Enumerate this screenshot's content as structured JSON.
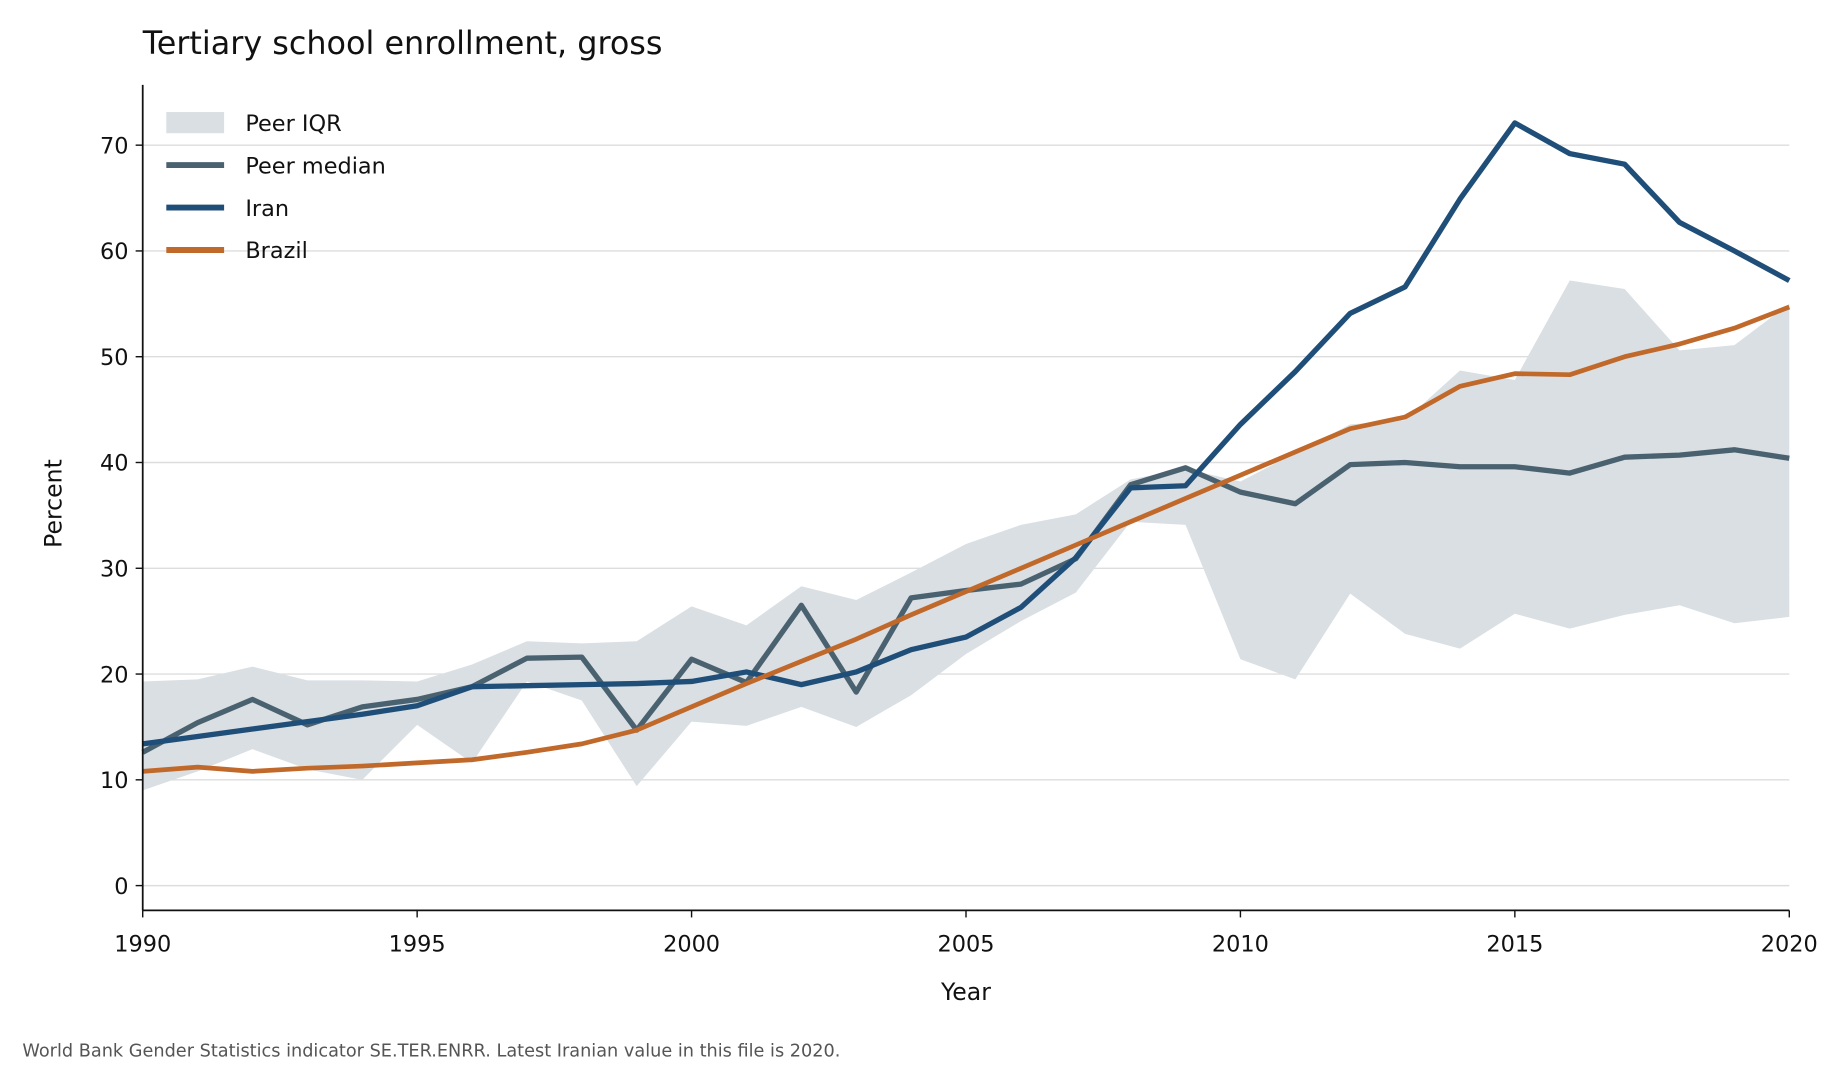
{
  "chart_data": {
    "type": "line",
    "title": "Tertiary school enrollment, gross",
    "xlabel": "Year",
    "ylabel": "Percent",
    "xlim": [
      1990,
      2020
    ],
    "ylim": [
      -2.5,
      75.5
    ],
    "xticks": [
      1990,
      1995,
      2000,
      2005,
      2010,
      2015,
      2020
    ],
    "yticks": [
      0,
      10,
      20,
      30,
      40,
      50,
      60,
      70
    ],
    "grid": "horizontal",
    "legend_position": "top-left",
    "x": [
      1990,
      1991,
      1992,
      1993,
      1994,
      1995,
      1996,
      1997,
      1998,
      1999,
      2000,
      2001,
      2002,
      2003,
      2004,
      2005,
      2006,
      2007,
      2008,
      2009,
      2010,
      2011,
      2012,
      2013,
      2014,
      2015,
      2016,
      2017,
      2018,
      2019,
      2020
    ],
    "band": {
      "name": "Peer IQR",
      "color": "#dadfe3",
      "upper": [
        19.3,
        19.5,
        20.7,
        19.4,
        19.4,
        19.3,
        20.9,
        23.1,
        22.9,
        23.1,
        26.4,
        24.6,
        28.3,
        27.0,
        29.6,
        32.3,
        34.1,
        35.1,
        38.4,
        39.4,
        38.2,
        40.9,
        43.6,
        44.0,
        48.7,
        47.8,
        57.2,
        56.4,
        50.6,
        51.1,
        55.0
      ],
      "lower": [
        9.0,
        10.8,
        12.9,
        11.0,
        10.0,
        15.2,
        11.6,
        19.3,
        17.5,
        9.4,
        15.5,
        15.1,
        16.9,
        15.0,
        18.0,
        21.9,
        25.0,
        27.7,
        34.4,
        34.1,
        21.4,
        19.5,
        27.6,
        23.8,
        22.4,
        25.7,
        24.3,
        25.6,
        26.5,
        24.8,
        25.4
      ]
    },
    "series": [
      {
        "name": "Peer median",
        "color": "#4a6270",
        "values": [
          12.6,
          15.4,
          17.6,
          15.2,
          16.9,
          17.6,
          18.8,
          21.5,
          21.6,
          14.7,
          21.4,
          19.2,
          26.5,
          18.3,
          27.2,
          27.9,
          28.5,
          30.9,
          37.9,
          39.5,
          37.2,
          36.1,
          39.8,
          40.0,
          39.6,
          39.6,
          39.0,
          40.5,
          40.7,
          41.2,
          40.4
        ]
      },
      {
        "name": "Iran",
        "color": "#1f4e79",
        "values": [
          13.4,
          14.1,
          14.8,
          15.5,
          16.2,
          17.0,
          18.8,
          18.9,
          19.0,
          19.1,
          19.3,
          20.2,
          19.0,
          20.2,
          22.3,
          23.5,
          26.3,
          31.0,
          37.6,
          37.8,
          43.6,
          48.6,
          54.1,
          56.6,
          64.9,
          72.1,
          69.2,
          68.2,
          62.7,
          60.0,
          57.2
        ]
      },
      {
        "name": "Brazil",
        "color": "#c0692a",
        "values": [
          10.8,
          11.2,
          10.8,
          11.1,
          11.3,
          11.6,
          11.9,
          12.6,
          13.4,
          14.7,
          16.9,
          19.1,
          21.2,
          23.3,
          25.6,
          27.8,
          30.0,
          32.2,
          34.4,
          36.6,
          38.8,
          41.0,
          43.2,
          44.3,
          47.2,
          48.4,
          48.3,
          50.0,
          51.2,
          52.7,
          54.7
        ]
      }
    ]
  },
  "footnote": "World Bank Gender Statistics indicator SE.TER.ENRR. Latest Iranian value in this file is 2020."
}
